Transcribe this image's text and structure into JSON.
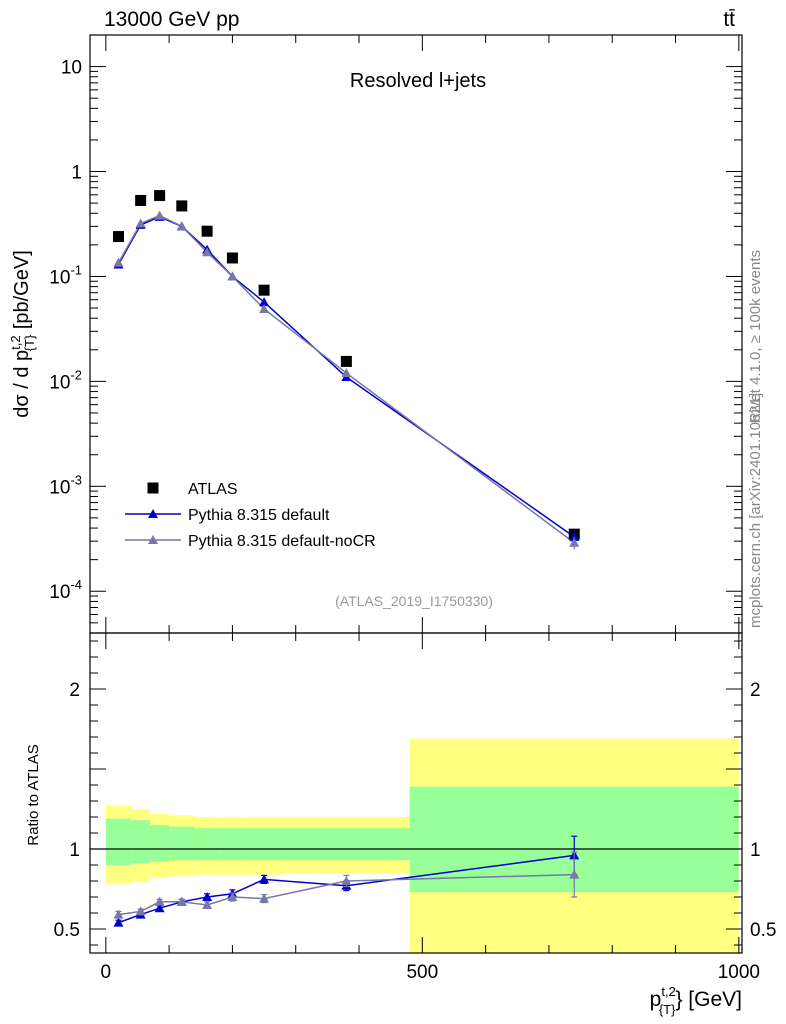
{
  "header": {
    "energy_label": "13000 GeV pp",
    "process_label": "tt̄"
  },
  "side_labels": {
    "rivet": "Rivet 4.1.0, ≥ 100k events",
    "mcplots": "mcplots.cern.ch [arXiv:2401.10621]"
  },
  "chart_data": [
    {
      "type": "scatter",
      "panel": "main",
      "title": "Resolved l+jets",
      "analysis_tag": "(ATLAS_2019_I1750330)",
      "ylabel": "dσ / d p_{T}^{t,2} [pb/GeV]",
      "yscale": "log",
      "ylim": [
        4e-05,
        20
      ],
      "xlim": [
        -25,
        1005
      ],
      "ytick_labels": [
        "10^{-4}",
        "10^{-3}",
        "10^{-2}",
        "10^{-1}",
        "1",
        "10"
      ],
      "ytick_values": [
        0.0001,
        0.001,
        0.01,
        0.1,
        1,
        10
      ],
      "x": [
        20,
        55,
        85,
        120,
        160,
        200,
        250,
        380,
        740
      ],
      "series": [
        {
          "name": "ATLAS",
          "color": "#000000",
          "marker": "square",
          "values": [
            0.24,
            0.53,
            0.59,
            0.47,
            0.27,
            0.15,
            0.074,
            0.0155,
            0.00035
          ],
          "errors": [
            0,
            0,
            0,
            0,
            0,
            0,
            0,
            0,
            0
          ]
        },
        {
          "name": "Pythia 8.315 default",
          "color": "#0000cc",
          "marker": "triangle",
          "values": [
            0.13,
            0.31,
            0.37,
            0.3,
            0.18,
            0.1,
            0.057,
            0.011,
            0.00033
          ],
          "errors": [
            0.005,
            0.01,
            0.01,
            0.01,
            0.006,
            0.004,
            0.003,
            0.0005,
            5e-05
          ]
        },
        {
          "name": "Pythia 8.315 default-noCR",
          "color": "#7777aa",
          "marker": "triangle",
          "values": [
            0.135,
            0.32,
            0.38,
            0.3,
            0.17,
            0.1,
            0.049,
            0.012,
            0.00029
          ],
          "errors": [
            0.005,
            0.01,
            0.01,
            0.01,
            0.006,
            0.004,
            0.003,
            0.0005,
            4e-05
          ]
        }
      ],
      "legend": {
        "placement": "lower-left",
        "entries": [
          "ATLAS",
          "Pythia 8.315 default",
          "Pythia 8.315 default-noCR"
        ]
      }
    },
    {
      "type": "line",
      "panel": "ratio",
      "ylabel": "Ratio to ATLAS",
      "xlabel": "p_{T}^{t,2} [GeV]",
      "xlim": [
        -25,
        1005
      ],
      "ylim": [
        0.35,
        2.35
      ],
      "xticks": [
        0,
        500,
        1000
      ],
      "yticks": [
        0.5,
        1,
        2
      ],
      "reference_line": 1,
      "bin_edges": [
        0,
        40,
        70,
        100,
        140,
        180,
        220,
        280,
        480,
        1000
      ],
      "band_yellow": [
        [
          0.78,
          1.27
        ],
        [
          0.8,
          1.25
        ],
        [
          0.82,
          1.22
        ],
        [
          0.83,
          1.21
        ],
        [
          0.84,
          1.2
        ],
        [
          0.84,
          1.2
        ],
        [
          0.84,
          1.2
        ],
        [
          0.85,
          1.2
        ],
        [
          0.35,
          1.69
        ]
      ],
      "band_green": [
        [
          0.9,
          1.19
        ],
        [
          0.91,
          1.18
        ],
        [
          0.92,
          1.15
        ],
        [
          0.93,
          1.14
        ],
        [
          0.93,
          1.13
        ],
        [
          0.93,
          1.13
        ],
        [
          0.93,
          1.13
        ],
        [
          0.93,
          1.13
        ],
        [
          0.73,
          1.39
        ]
      ],
      "x": [
        20,
        55,
        85,
        120,
        160,
        200,
        250,
        380,
        740
      ],
      "series": [
        {
          "name": "Pythia 8.315 default",
          "color": "#0000cc",
          "values": [
            0.54,
            0.59,
            0.63,
            0.67,
            0.7,
            0.72,
            0.81,
            0.77,
            0.96
          ],
          "errors": [
            0.015,
            0.015,
            0.015,
            0.015,
            0.02,
            0.025,
            0.025,
            0.03,
            0.12
          ]
        },
        {
          "name": "Pythia 8.315 default-noCR",
          "color": "#7777aa",
          "values": [
            0.59,
            0.61,
            0.67,
            0.67,
            0.65,
            0.7,
            0.69,
            0.8,
            0.84
          ],
          "errors": [
            0.02,
            0.015,
            0.015,
            0.015,
            0.02,
            0.025,
            0.025,
            0.035,
            0.14
          ]
        }
      ]
    }
  ]
}
